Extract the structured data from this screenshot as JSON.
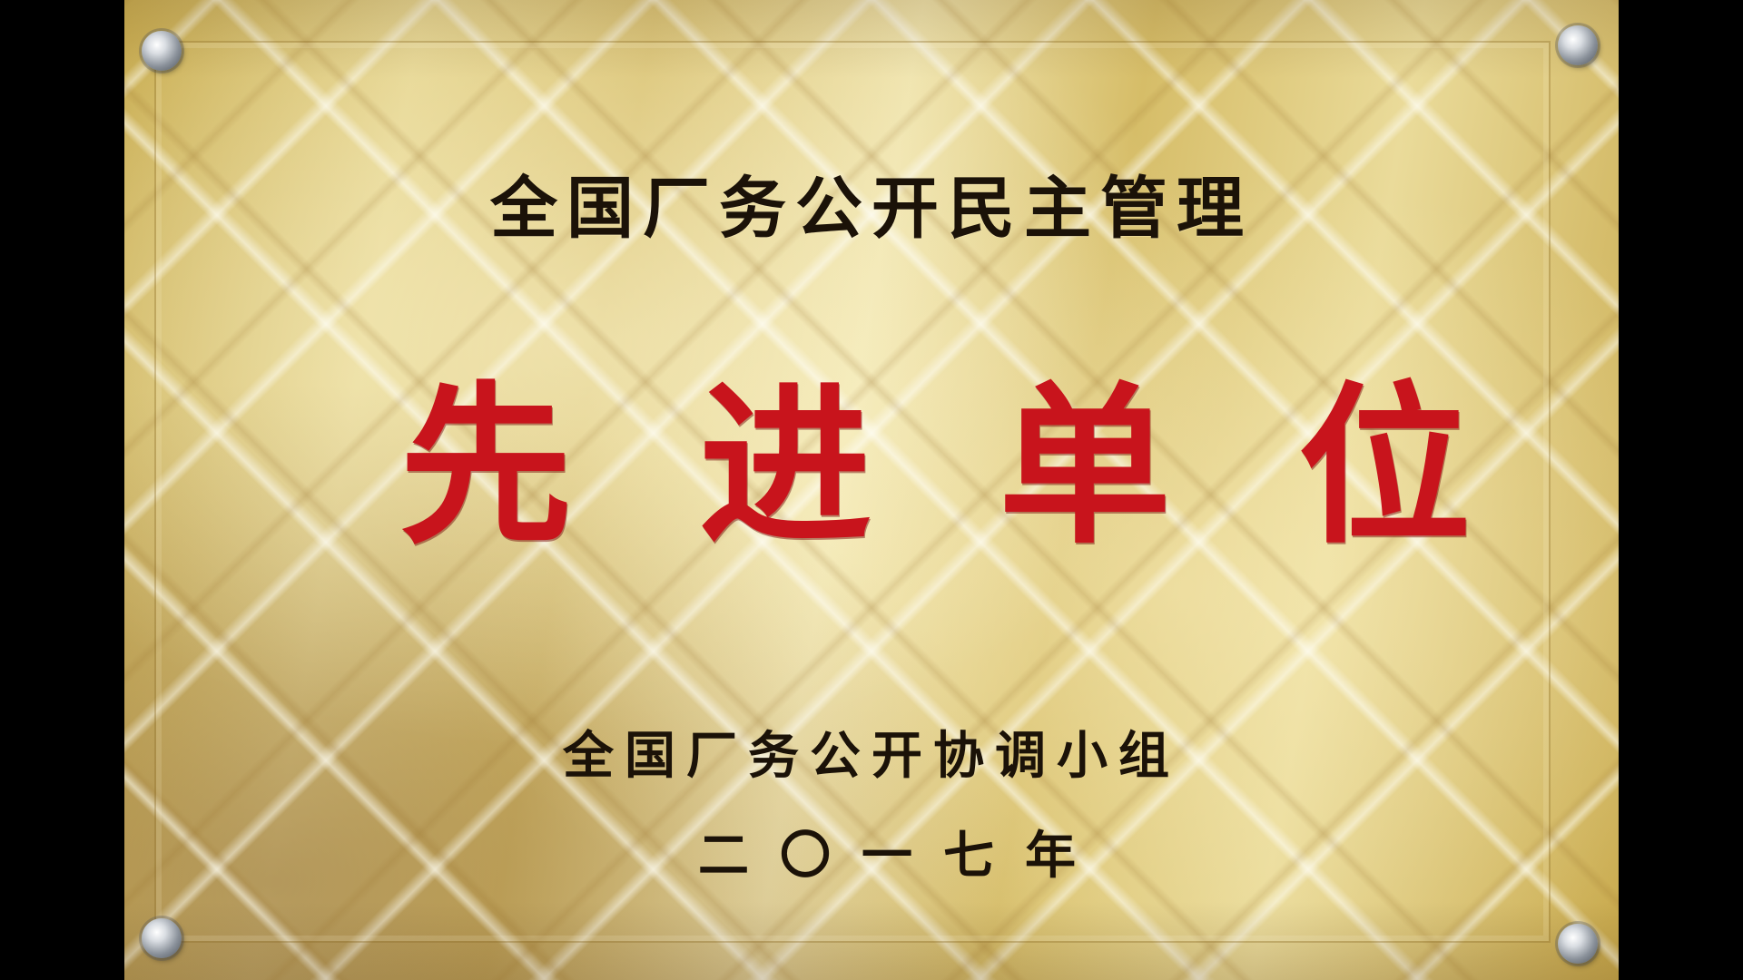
{
  "plaque": {
    "title": "全国厂务公开民主管理",
    "headline": "先进单位",
    "issuer": "全国厂务公开协调小组",
    "year": "二〇一七年"
  },
  "colors": {
    "background": "#000000",
    "plaque_gold": "#e5d48f",
    "text_dark": "#1b1208",
    "headline_red": "#c8141c"
  }
}
